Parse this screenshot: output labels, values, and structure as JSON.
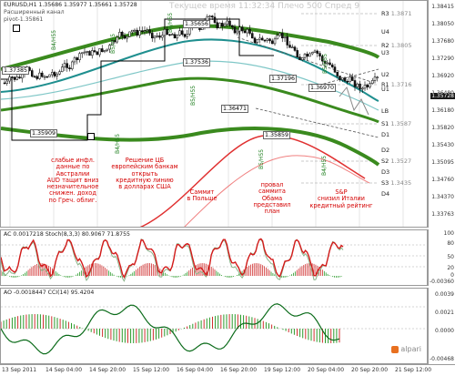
{
  "window": {
    "symbol_header": "EURUSD,H1  1.35686 1.35977 1.35661 1.35728",
    "sub_line1": "Расширенный канал",
    "sub_line2": "pivot-1.35861",
    "timer_text": "Текущее время 11:32:34 Плечо 500 Спред 9"
  },
  "price_axis": {
    "ticks": [
      "1.38415",
      "1.38050",
      "1.37680",
      "1.37290",
      "1.36920",
      "1.36480",
      "1.36180",
      "1.35820",
      "1.35430",
      "1.35095",
      "1.34760",
      "1.34370",
      "1.33763"
    ],
    "current_price": "1.35728"
  },
  "levels": [
    {
      "name": "R3",
      "value": "1.3871"
    },
    {
      "name": "R2",
      "value": "1.3805"
    },
    {
      "name": "R1",
      "value": "1.3716"
    },
    {
      "name": "U4",
      "value": ""
    },
    {
      "name": "U3",
      "value": ""
    },
    {
      "name": "U2",
      "value": ""
    },
    {
      "name": "U1",
      "value": ""
    },
    {
      "name": "LB",
      "value": ""
    },
    {
      "name": "D1",
      "value": ""
    },
    {
      "name": "D2",
      "value": ""
    },
    {
      "name": "D3",
      "value": ""
    },
    {
      "name": "D4",
      "value": ""
    },
    {
      "name": "S1",
      "value": "1.3587"
    },
    {
      "name": "S2",
      "value": "1.3527"
    },
    {
      "name": "S3",
      "value": "1.3435"
    }
  ],
  "price_labels": [
    "1.37385",
    "1.35909",
    "1.37536",
    "1.37196",
    "1.36970",
    "1.36471",
    "1.35859",
    "1.35656"
  ],
  "vertical_labels": [
    "B4/H55",
    "B5/H55",
    "B4/H55",
    "B4/H55",
    "B5/H55",
    "B5/H55",
    "B5/H55",
    "B4/H55"
  ],
  "news": [
    {
      "lines": [
        "слабые инфл.",
        "данные по",
        "Австралии",
        "AUD тащит вниз",
        "незначительное",
        "снижен. доход",
        "по Греч. облиг."
      ]
    },
    {
      "lines": [
        "Решение ЦБ",
        "европейским банкам",
        "открыть",
        "кредитную линию",
        "в долларах США"
      ]
    },
    {
      "lines": [
        "Саммит",
        "в Польше"
      ]
    },
    {
      "lines": [
        "провал",
        "саммита",
        "Обама",
        "представил",
        "план"
      ]
    },
    {
      "lines": [
        "S&P",
        "снизил Италии",
        "кредитный рейтинг"
      ]
    }
  ],
  "ac_pane": {
    "header": "AC 0.0017218  Stoch(8,3,3) 80.9067 71.8755",
    "ticks": [
      "100",
      "80",
      "50",
      "20",
      "0",
      "-0.00360"
    ]
  },
  "ao_pane": {
    "header": "AO -0.0018447  CCI(14) 95.4204",
    "ticks": [
      "0.0039",
      "0.0021",
      "0.0000",
      "-0.00468"
    ]
  },
  "time_axis": [
    "13 Sep 2011",
    "14 Sep 04:00",
    "14 Sep 20:00",
    "15 Sep 12:00",
    "16 Sep 04:00",
    "16 Sep 20:00",
    "19 Sep 12:00",
    "20 Sep 04:00",
    "20 Sep 20:00",
    "21 Sep 12:00"
  ],
  "brand": "alpari",
  "colors": {
    "bull_candle": "#ffffff",
    "bear_candle": "#1a1a1a",
    "ma_green": "#3a8a1e",
    "ma_teal": "#1f8f8f",
    "lb_red": "#e03030",
    "news": "#d40000"
  }
}
